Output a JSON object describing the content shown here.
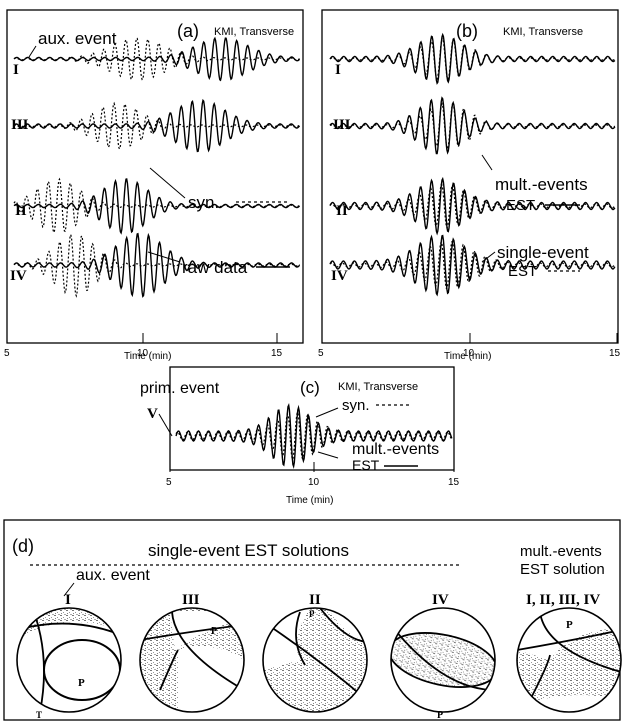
{
  "panel_a": {
    "label": "(a)",
    "station": "KMI, Transverse",
    "traces": [
      "I",
      "III",
      "II",
      "IV"
    ],
    "annotations": {
      "aux": "aux. event",
      "syn": "syn.",
      "raw": "raw data"
    },
    "ticks": [
      "5",
      "10",
      "15"
    ],
    "xlabel": "Time (min)"
  },
  "panel_b": {
    "label": "(b)",
    "station": "KMI, Transverse",
    "traces": [
      "I",
      "III",
      "II",
      "IV"
    ],
    "annotations": {
      "mult": "mult.-events",
      "mult_est": "EST",
      "single": "single-event",
      "single_est": "EST"
    },
    "ticks": [
      "5",
      "10",
      "15"
    ],
    "xlabel": "Time (min)"
  },
  "panel_c": {
    "label": "(c)",
    "station": "KMI, Transverse",
    "trace": "V",
    "annotations": {
      "prim": "prim. event",
      "syn": "syn.",
      "mult": "mult.-events",
      "est": "EST"
    },
    "ticks": [
      "5",
      "10",
      "15"
    ],
    "xlabel": "Time (min)"
  },
  "panel_d": {
    "label": "(d)",
    "single_header": "single-event EST solutions",
    "mult_header_1": "mult.-events",
    "mult_header_2": "EST solution",
    "aux": "aux. event",
    "balls": [
      {
        "label": "I",
        "p": "P",
        "t": "T"
      },
      {
        "label": "III",
        "p": "P",
        "t": ""
      },
      {
        "label": "II",
        "p": "P",
        "t": ""
      },
      {
        "label": "IV",
        "p": "P",
        "t": ""
      },
      {
        "label": "I, II, III, IV",
        "p": "P",
        "t": ""
      }
    ]
  }
}
